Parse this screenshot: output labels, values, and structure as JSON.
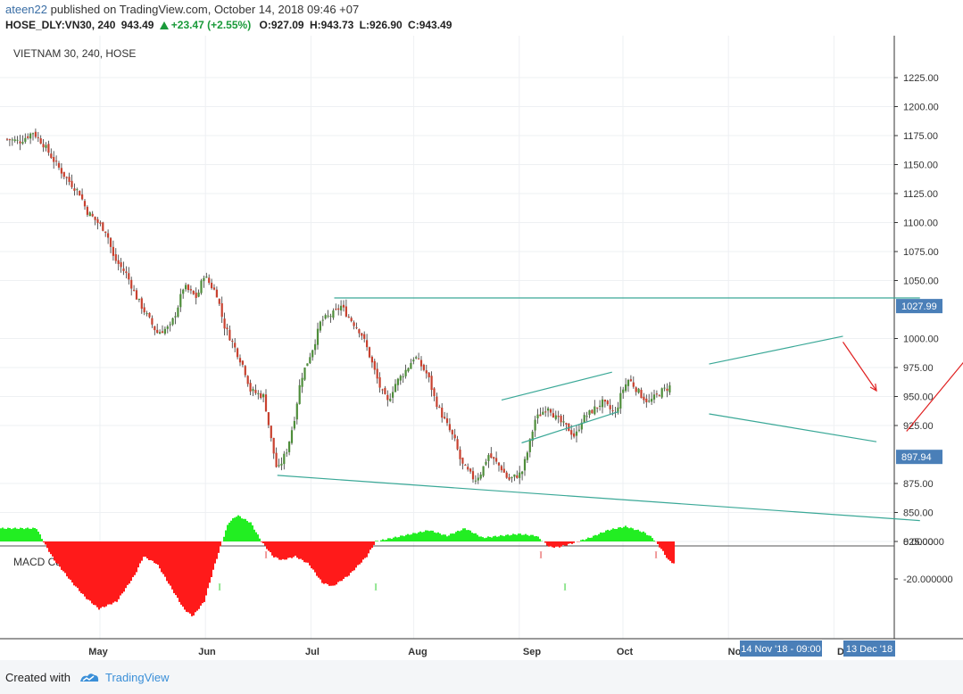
{
  "header": {
    "user": "ateen22",
    "published": "published on TradingView.com, October 14, 2018 09:46 +07",
    "symbol": "HOSE_DLY:VN30, 240",
    "last": "943.49",
    "change": "+23.47 (+2.55%)",
    "open": "O:927.09",
    "high": "H:943.73",
    "low": "L:926.90",
    "close": "C:943.49"
  },
  "footer": {
    "created": "Created with",
    "brand": "TradingView",
    "logo_icon": "tradingview-logo-icon"
  },
  "colors": {
    "up": "#4e8d3a",
    "down": "#c8412f",
    "trendline": "#3aa897",
    "arrow": "#e02020",
    "macd_pos": "#22ee22",
    "macd_neg": "#ff1a1a",
    "axis_label_bg": "#4a7fb8"
  },
  "chart_data": [
    {
      "type": "candlestick",
      "title": "VIETNAM 30, 240, HOSE",
      "ylim": [
        810,
        1245
      ],
      "yticks": [
        "1225.00",
        "1200.00",
        "1175.00",
        "1150.00",
        "1125.00",
        "1100.00",
        "1075.00",
        "1050.00",
        "1000.00",
        "975.00",
        "950.00",
        "925.00",
        "875.00",
        "850.00",
        "825.00"
      ],
      "xticks": [
        "May",
        "Jun",
        "Jul",
        "Aug",
        "Sep",
        "Oct",
        "No",
        "D"
      ],
      "price_labels": [
        "1027.99",
        "897.94"
      ],
      "time_labels": [
        "14 Nov '18 - 09:00",
        "13 Dec '18"
      ],
      "x_start": "2018-04-02",
      "x_end": "2018-12-31",
      "grid": true,
      "close_path": [
        [
          "2018-04-02",
          1172
        ],
        [
          "2018-04-06",
          1170
        ],
        [
          "2018-04-10",
          1178
        ],
        [
          "2018-04-13",
          1168
        ],
        [
          "2018-04-17",
          1150
        ],
        [
          "2018-04-20",
          1138
        ],
        [
          "2018-04-24",
          1125
        ],
        [
          "2018-04-26",
          1110
        ],
        [
          "2018-05-02",
          1092
        ],
        [
          "2018-05-04",
          1070
        ],
        [
          "2018-05-08",
          1055
        ],
        [
          "2018-05-11",
          1035
        ],
        [
          "2018-05-15",
          1015
        ],
        [
          "2018-05-17",
          1005
        ],
        [
          "2018-05-21",
          1010
        ],
        [
          "2018-05-23",
          1025
        ],
        [
          "2018-05-25",
          1045
        ],
        [
          "2018-05-29",
          1035
        ],
        [
          "2018-05-31",
          1055
        ],
        [
          "2018-06-04",
          1038
        ],
        [
          "2018-06-06",
          1012
        ],
        [
          "2018-06-08",
          1000
        ],
        [
          "2018-06-12",
          975
        ],
        [
          "2018-06-14",
          955
        ],
        [
          "2018-06-18",
          950
        ],
        [
          "2018-06-20",
          915
        ],
        [
          "2018-06-22",
          885
        ],
        [
          "2018-06-25",
          905
        ],
        [
          "2018-06-27",
          930
        ],
        [
          "2018-06-29",
          965
        ],
        [
          "2018-07-03",
          995
        ],
        [
          "2018-07-05",
          1015
        ],
        [
          "2018-07-09",
          1022
        ],
        [
          "2018-07-11",
          1028
        ],
        [
          "2018-07-13",
          1020
        ],
        [
          "2018-07-17",
          1005
        ],
        [
          "2018-07-19",
          990
        ],
        [
          "2018-07-23",
          955
        ],
        [
          "2018-07-25",
          945
        ],
        [
          "2018-07-27",
          960
        ],
        [
          "2018-07-31",
          975
        ],
        [
          "2018-08-02",
          985
        ],
        [
          "2018-08-06",
          968
        ],
        [
          "2018-08-08",
          948
        ],
        [
          "2018-08-10",
          935
        ],
        [
          "2018-08-14",
          912
        ],
        [
          "2018-08-16",
          892
        ],
        [
          "2018-08-20",
          878
        ],
        [
          "2018-08-22",
          885
        ],
        [
          "2018-08-24",
          900
        ],
        [
          "2018-08-28",
          888
        ],
        [
          "2018-08-30",
          878
        ],
        [
          "2018-09-03",
          884
        ],
        [
          "2018-09-05",
          905
        ],
        [
          "2018-09-07",
          930
        ],
        [
          "2018-09-11",
          942
        ],
        [
          "2018-09-13",
          932
        ],
        [
          "2018-09-17",
          922
        ],
        [
          "2018-09-19",
          915
        ],
        [
          "2018-09-21",
          930
        ],
        [
          "2018-09-25",
          940
        ],
        [
          "2018-09-27",
          945
        ],
        [
          "2018-10-01",
          935
        ],
        [
          "2018-10-03",
          955
        ],
        [
          "2018-10-05",
          965
        ],
        [
          "2018-10-09",
          950
        ],
        [
          "2018-10-11",
          945
        ],
        [
          "2018-10-15",
          955
        ],
        [
          "2018-10-17",
          958
        ],
        [
          "2018-10-19",
          963
        ],
        [
          "2018-10-23",
          965
        ],
        [
          "2018-10-25",
          970
        ],
        [
          "2018-10-29",
          975
        ],
        [
          "2018-10-31",
          968
        ],
        [
          "2018-11-02",
          948
        ],
        [
          "2018-11-06",
          938
        ],
        [
          "2018-11-08",
          948
        ],
        [
          "2018-11-12",
          960
        ],
        [
          "2018-11-14",
          970
        ],
        [
          "2018-11-16",
          962
        ],
        [
          "2018-11-20",
          950
        ],
        [
          "2018-11-22",
          960
        ],
        [
          "2018-11-26",
          970
        ],
        [
          "2018-11-28",
          980
        ],
        [
          "2018-11-30",
          988
        ],
        [
          "2018-12-04",
          992
        ],
        [
          "2018-12-06",
          998
        ],
        [
          "2018-12-10",
          994
        ],
        [
          "2018-12-12",
          990
        ],
        [
          "2018-12-14",
          980
        ],
        [
          "2018-12-18",
          968
        ],
        [
          "2018-12-20",
          945
        ],
        [
          "2018-12-21",
          918
        ],
        [
          "2018-12-24",
          925
        ],
        [
          "2018-12-26",
          943.49
        ]
      ],
      "lines": [
        [
          [
            "2018-07-09",
            1035
          ],
          [
            "2018-12-31",
            1035
          ]
        ],
        [
          [
            "2018-06-22",
            882
          ],
          [
            "2018-12-31",
            843
          ]
        ],
        [
          [
            "2018-08-28",
            947
          ],
          [
            "2018-09-30",
            971
          ]
        ],
        [
          [
            "2018-09-03",
            910
          ],
          [
            "2018-10-02",
            937
          ]
        ],
        [
          [
            "2018-10-29",
            978
          ],
          [
            "2018-12-08",
            1002
          ]
        ],
        [
          [
            "2018-10-29",
            935
          ],
          [
            "2018-12-18",
            911
          ]
        ]
      ],
      "arrows": [
        [
          [
            "2018-12-08",
            997
          ],
          [
            "2018-12-18",
            955
          ]
        ],
        [
          [
            "2018-12-27",
            920
          ],
          [
            "2019-01-28",
            1032
          ]
        ],
        [
          [
            "2019-01-31",
            1030
          ],
          [
            "2019-03-12",
            890
          ]
        ]
      ]
    },
    {
      "type": "histogram",
      "title": "MACD Candles (1, 12, 26)",
      "ylim": [
        -32,
        14
      ],
      "yticks": [
        "0.000000",
        "-20.000000"
      ],
      "macd_path": [
        [
          0,
          7
        ],
        [
          40,
          7
        ],
        [
          50,
          -2
        ],
        [
          60,
          -10
        ],
        [
          80,
          -22
        ],
        [
          95,
          -30
        ],
        [
          110,
          -36
        ],
        [
          130,
          -32
        ],
        [
          150,
          -18
        ],
        [
          160,
          -8
        ],
        [
          175,
          -12
        ],
        [
          190,
          -24
        ],
        [
          205,
          -36
        ],
        [
          215,
          -40
        ],
        [
          228,
          -32
        ],
        [
          240,
          -12
        ],
        [
          248,
          0
        ],
        [
          255,
          10
        ],
        [
          265,
          14
        ],
        [
          280,
          10
        ],
        [
          292,
          0
        ],
        [
          305,
          -8
        ],
        [
          315,
          -10
        ],
        [
          330,
          -8
        ],
        [
          345,
          -12
        ],
        [
          360,
          -22
        ],
        [
          372,
          -24
        ],
        [
          390,
          -18
        ],
        [
          410,
          -8
        ],
        [
          420,
          0
        ],
        [
          440,
          2
        ],
        [
          460,
          4
        ],
        [
          480,
          6
        ],
        [
          500,
          3
        ],
        [
          520,
          7
        ],
        [
          540,
          2
        ],
        [
          560,
          3
        ],
        [
          580,
          4
        ],
        [
          600,
          3
        ],
        [
          615,
          -3
        ],
        [
          625,
          -3
        ],
        [
          640,
          -1
        ],
        [
          660,
          2
        ],
        [
          680,
          6
        ],
        [
          700,
          8
        ],
        [
          720,
          5
        ],
        [
          730,
          2
        ],
        [
          740,
          -4
        ],
        [
          748,
          -10
        ],
        [
          755,
          -12
        ]
      ],
      "markers": [
        {
          "text": "I",
          "color": "#e03030",
          "pos": [
            298,
            -14
          ]
        },
        {
          "text": "I",
          "color": "#e03030",
          "pos": [
            606,
            -14
          ]
        },
        {
          "text": "I",
          "color": "#e03030",
          "pos": [
            735,
            -14
          ]
        },
        {
          "text": "I",
          "color": "#22cc22",
          "pos": [
            246,
            -48
          ]
        },
        {
          "text": "I",
          "color": "#22cc22",
          "pos": [
            421,
            -48
          ]
        },
        {
          "text": "I",
          "color": "#22cc22",
          "pos": [
            633,
            -48
          ]
        }
      ]
    }
  ]
}
